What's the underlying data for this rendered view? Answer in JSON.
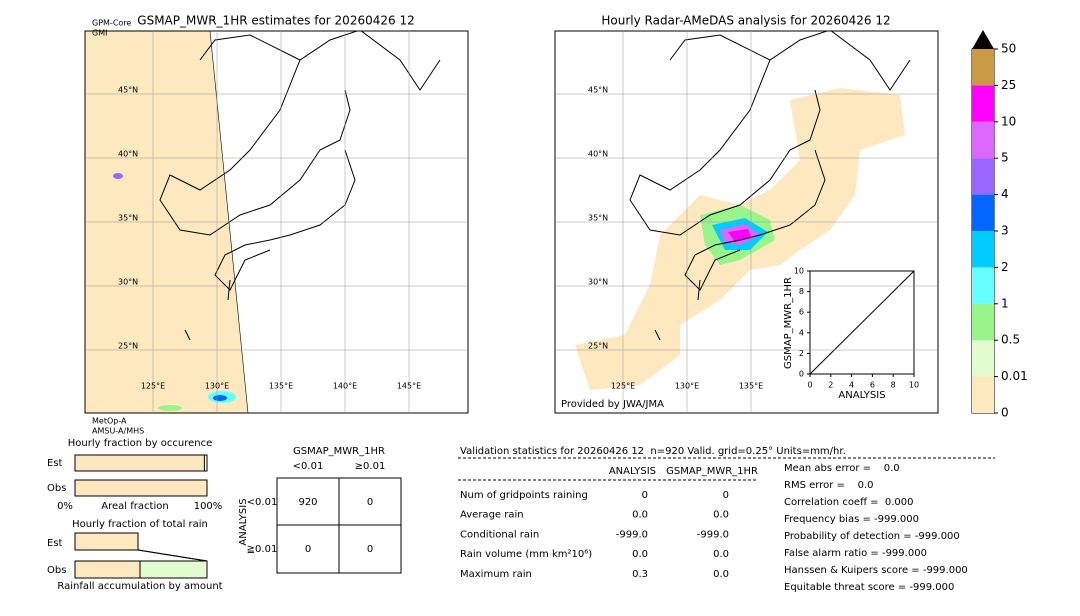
{
  "left_map": {
    "title": "GSMAP_MWR_1HR estimates for 20260426 12",
    "sat_top": [
      "GPM-Core",
      "GMI"
    ],
    "sat_bottom": [
      "MetOp-A",
      "AMSU-A/MHS"
    ],
    "lat_labels": [
      "45°N",
      "40°N",
      "35°N",
      "30°N",
      "25°N"
    ],
    "lon_labels": [
      "125°E",
      "130°E",
      "135°E",
      "140°E",
      "145°E"
    ]
  },
  "right_map": {
    "title": "Hourly Radar-AMeDAS analysis for 20260426 12",
    "lat_labels": [
      "45°N",
      "40°N",
      "35°N",
      "30°N",
      "25°N"
    ],
    "lon_labels": [
      "125°E",
      "130°E",
      "135°E"
    ],
    "credit": "Provided by JWA/JMA"
  },
  "colorbar": {
    "ticks": [
      0,
      0.01,
      0.5,
      1,
      2,
      3,
      4,
      5,
      10,
      25,
      50
    ],
    "colors": [
      "#fde8c0",
      "#e2fcd0",
      "#98f58a",
      "#66ffff",
      "#00ccff",
      "#0066ff",
      "#9966ff",
      "#dd66ff",
      "#ff00ff",
      "#cc9944"
    ]
  },
  "inset": {
    "xlabel": "ANALYSIS",
    "ylabel": "GSMAP_MWR_1HR",
    "xlim": [
      0,
      10
    ],
    "ylim": [
      0,
      10
    ],
    "xticks": [
      0,
      2,
      4,
      6,
      8,
      10
    ],
    "yticks": [
      0,
      2,
      4,
      6,
      8,
      10
    ]
  },
  "fraction_occurrence": {
    "title": "Hourly fraction by occurence",
    "rows": [
      "Est",
      "Obs"
    ],
    "values": [
      0.98,
      1.0
    ],
    "axis_labels": [
      "0%",
      "Areal fraction",
      "100%"
    ]
  },
  "fraction_total": {
    "title": "Hourly fraction of total rain",
    "rows": [
      "Est",
      "Obs"
    ],
    "xlabel": "Rainfall accumulation by amount"
  },
  "contingency": {
    "title": "GSMAP_MWR_1HR",
    "col_headers": [
      "<0.01",
      "≥0.01"
    ],
    "row_axis": "ANALYSIS",
    "row_headers": [
      "<0.01",
      "≧0.01"
    ],
    "cells": [
      [
        "920",
        "0"
      ],
      [
        "0",
        "0"
      ]
    ]
  },
  "validation": {
    "title": "Validation statistics for 20260426 12  n=920 Valid. grid=0.25° Units=mm/hr.",
    "columns": [
      "ANALYSIS",
      "GSMAP_MWR_1HR"
    ],
    "rows": [
      [
        "Num of gridpoints raining",
        "0",
        "0"
      ],
      [
        "Average rain",
        "0.0",
        "0.0"
      ],
      [
        "Conditional rain",
        "-999.0",
        "-999.0"
      ],
      [
        "Rain volume (mm km²10⁶)",
        "0.0",
        "0.0"
      ],
      [
        "Maximum rain",
        "0.3",
        "0.0"
      ]
    ],
    "scores": [
      "Mean abs error =    0.0",
      "RMS error =    0.0",
      "Correlation coeff =  0.000",
      "Frequency bias = -999.000",
      "Probability of detection = -999.000",
      "False alarm ratio = -999.000",
      "Hanssen & Kuipers score = -999.000",
      "Equitable threat score = -999.000"
    ]
  }
}
